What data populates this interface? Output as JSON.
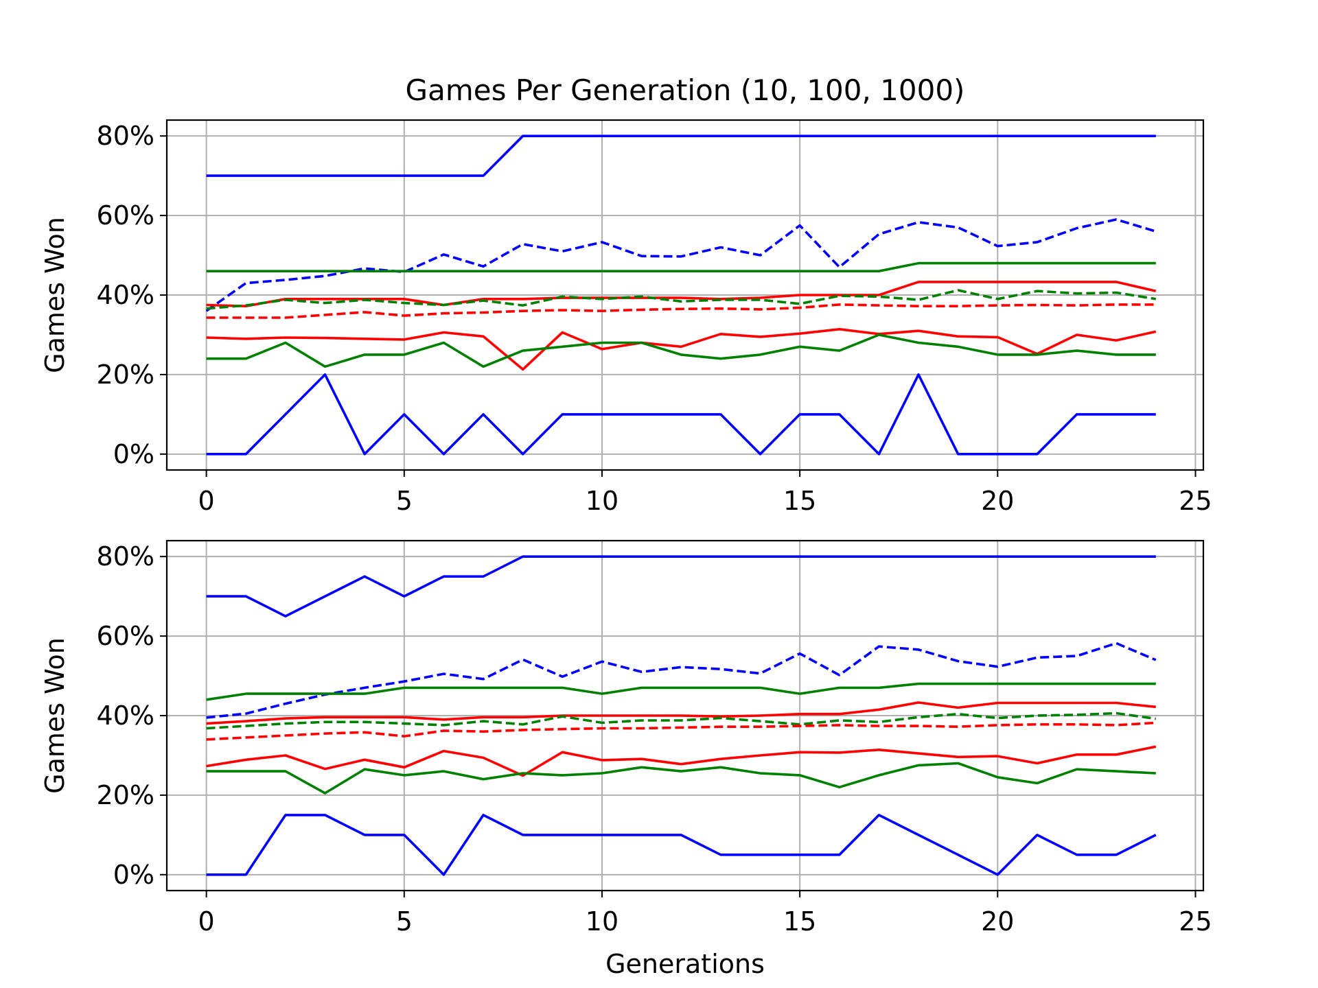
{
  "figure": {
    "title": "Games Per Generation (10, 100, 1000)",
    "xlabel": "Generations"
  },
  "colors": {
    "blue": "#0000ff",
    "green": "#008000",
    "red": "#ff0000",
    "grid": "#b0b0b0",
    "frame": "#000000"
  },
  "chart_data": [
    {
      "type": "line",
      "title": "Games Per Generation (10, 100, 1000)",
      "xlabel": "",
      "ylabel": "Games Won",
      "xlim": [
        -1,
        25.2
      ],
      "ylim": [
        -4,
        84
      ],
      "xticks": [
        0,
        5,
        10,
        15,
        20,
        25
      ],
      "xtick_labels": [
        "0",
        "5",
        "10",
        "15",
        "20",
        "25"
      ],
      "yticks": [
        0,
        20,
        40,
        60,
        80
      ],
      "ytick_labels": [
        "0%",
        "20%",
        "40%",
        "60%",
        "80%"
      ],
      "grid": true,
      "x": [
        0,
        1,
        2,
        3,
        4,
        5,
        6,
        7,
        8,
        9,
        10,
        11,
        12,
        13,
        14,
        15,
        16,
        17,
        18,
        19,
        20,
        21,
        22,
        23,
        24
      ],
      "series": [
        {
          "color": "blue",
          "style": "solid",
          "values": [
            70,
            70,
            70,
            70,
            70,
            70,
            70,
            70,
            80,
            80,
            80,
            80,
            80,
            80,
            80,
            80,
            80,
            80,
            80,
            80,
            80,
            80,
            80,
            80,
            80
          ]
        },
        {
          "color": "blue",
          "style": "dashed",
          "values": [
            36,
            43,
            43.8,
            44.8,
            46.7,
            45.8,
            50.2,
            47.2,
            52.8,
            51,
            53.3,
            49.8,
            49.7,
            52,
            50,
            57.5,
            47,
            55.3,
            58.3,
            57,
            52.3,
            53.3,
            56.8,
            59,
            56
          ]
        },
        {
          "color": "green",
          "style": "solid",
          "values": [
            46,
            46,
            46,
            46,
            46,
            46,
            46,
            46,
            46,
            46,
            46,
            46,
            46,
            46,
            46,
            46,
            46,
            46,
            48,
            48,
            48,
            48,
            48,
            48,
            48
          ]
        },
        {
          "color": "red",
          "style": "solid",
          "values": [
            37.5,
            37.2,
            39,
            39,
            39,
            39,
            37.5,
            39,
            39,
            39.3,
            39.3,
            39.3,
            39.3,
            39,
            39.3,
            40,
            40,
            40,
            43.3,
            43.3,
            43.3,
            43.3,
            43.3,
            43.3,
            41
          ]
        },
        {
          "color": "green",
          "style": "dashed",
          "values": [
            36.6,
            37.4,
            38.8,
            38,
            38.8,
            38,
            37.5,
            38.6,
            37.4,
            39.6,
            39,
            39.6,
            38.4,
            38.8,
            38.8,
            37.8,
            39.8,
            39.6,
            38.8,
            41.2,
            39,
            41,
            40.4,
            40.6,
            39
          ]
        },
        {
          "color": "red",
          "style": "dashed",
          "values": [
            34.3,
            34.3,
            34.3,
            35,
            35.7,
            34.8,
            35.4,
            35.6,
            36,
            36.2,
            36,
            36.3,
            36.5,
            36.6,
            36.4,
            36.8,
            37.6,
            37.4,
            37.2,
            37.2,
            37.4,
            37.5,
            37.4,
            37.6,
            37.6
          ]
        },
        {
          "color": "red",
          "style": "solid",
          "values": [
            29.3,
            29,
            29.3,
            29.2,
            29,
            28.8,
            30.6,
            29.6,
            21.3,
            30.6,
            26.4,
            28,
            27,
            30.2,
            29.5,
            30.3,
            31.4,
            30.2,
            31,
            29.6,
            29.4,
            25.2,
            30,
            28.6,
            30.8
          ]
        },
        {
          "color": "green",
          "style": "solid",
          "values": [
            24,
            24,
            28,
            22,
            25,
            25,
            28,
            22,
            26,
            27,
            28,
            28,
            25,
            24,
            25,
            27,
            26,
            30,
            28,
            27,
            25,
            25,
            26,
            25,
            25
          ]
        },
        {
          "color": "blue",
          "style": "solid",
          "values": [
            0,
            0,
            10,
            20,
            0,
            10,
            0,
            10,
            0,
            10,
            10,
            10,
            10,
            10,
            0,
            10,
            10,
            0,
            20,
            0,
            0,
            0,
            10,
            10,
            10
          ]
        }
      ]
    },
    {
      "type": "line",
      "title": "",
      "xlabel": "Generations",
      "ylabel": "Games Won",
      "xlim": [
        -1,
        25.2
      ],
      "ylim": [
        -4,
        84
      ],
      "xticks": [
        0,
        5,
        10,
        15,
        20,
        25
      ],
      "xtick_labels": [
        "0",
        "5",
        "10",
        "15",
        "20",
        "25"
      ],
      "yticks": [
        0,
        20,
        40,
        60,
        80
      ],
      "ytick_labels": [
        "0%",
        "20%",
        "40%",
        "60%",
        "80%"
      ],
      "grid": true,
      "x": [
        0,
        1,
        2,
        3,
        4,
        5,
        6,
        7,
        8,
        9,
        10,
        11,
        12,
        13,
        14,
        15,
        16,
        17,
        18,
        19,
        20,
        21,
        22,
        23,
        24
      ],
      "series": [
        {
          "color": "blue",
          "style": "solid",
          "values": [
            70,
            70,
            65,
            70,
            75,
            70,
            75,
            75,
            80,
            80,
            80,
            80,
            80,
            80,
            80,
            80,
            80,
            80,
            80,
            80,
            80,
            80,
            80,
            80,
            80
          ]
        },
        {
          "color": "blue",
          "style": "dashed",
          "values": [
            39.5,
            40.5,
            43,
            45.3,
            47,
            48.6,
            50.5,
            49.2,
            54.1,
            49.8,
            53.6,
            51,
            52.2,
            51.7,
            50.6,
            55.6,
            50.2,
            57.4,
            56.6,
            53.7,
            52.3,
            54.6,
            55,
            58.2,
            54
          ]
        },
        {
          "color": "green",
          "style": "solid",
          "values": [
            44,
            45.5,
            45.5,
            45.5,
            45.5,
            47,
            47,
            47,
            47,
            47,
            45.5,
            47,
            47,
            47,
            47,
            45.5,
            47,
            47,
            48,
            48,
            48,
            48,
            48,
            48,
            48
          ]
        },
        {
          "color": "red",
          "style": "solid",
          "values": [
            38,
            38.6,
            39.3,
            39.6,
            39.6,
            39.6,
            39,
            39.6,
            39.6,
            40,
            40,
            40,
            40,
            39.8,
            40,
            40.4,
            40.4,
            41.5,
            43.3,
            42,
            43.2,
            43.2,
            43.2,
            43.2,
            42.2
          ]
        },
        {
          "color": "green",
          "style": "dashed",
          "values": [
            36.8,
            37.4,
            38,
            38.4,
            38.4,
            38,
            37.6,
            38.6,
            37.8,
            39.8,
            38.2,
            38.8,
            38.8,
            39.4,
            38.6,
            37.8,
            38.8,
            38.4,
            39.6,
            40.4,
            39.4,
            40,
            40.2,
            40.6,
            39.2
          ]
        },
        {
          "color": "red",
          "style": "dashed",
          "values": [
            34,
            34.5,
            35,
            35.5,
            35.8,
            34.8,
            36.2,
            36,
            36.4,
            36.6,
            36.8,
            36.8,
            37,
            37.2,
            37.2,
            37.4,
            37.6,
            37.4,
            37.4,
            37.2,
            37.6,
            37.8,
            37.8,
            37.6,
            38.2
          ]
        },
        {
          "color": "red",
          "style": "solid",
          "values": [
            27.3,
            28.9,
            30,
            26.6,
            28.9,
            27,
            31.1,
            29.4,
            24.9,
            30.8,
            28.8,
            29.1,
            27.8,
            29.1,
            30,
            30.8,
            30.7,
            31.4,
            30.5,
            29.6,
            29.8,
            28,
            30.2,
            30.2,
            32.2
          ]
        },
        {
          "color": "green",
          "style": "solid",
          "values": [
            26,
            26,
            26,
            20.5,
            26.5,
            25,
            26,
            24,
            25.5,
            25,
            25.5,
            27,
            26,
            27,
            25.5,
            25,
            22,
            25,
            27.5,
            28,
            24.5,
            23,
            26.5,
            26,
            25.5
          ]
        },
        {
          "color": "blue",
          "style": "solid",
          "values": [
            0,
            0,
            15,
            15,
            10,
            10,
            0,
            15,
            10,
            10,
            10,
            10,
            10,
            5,
            5,
            5,
            5,
            15,
            10,
            5,
            0,
            10,
            5,
            5,
            10
          ]
        }
      ]
    }
  ]
}
